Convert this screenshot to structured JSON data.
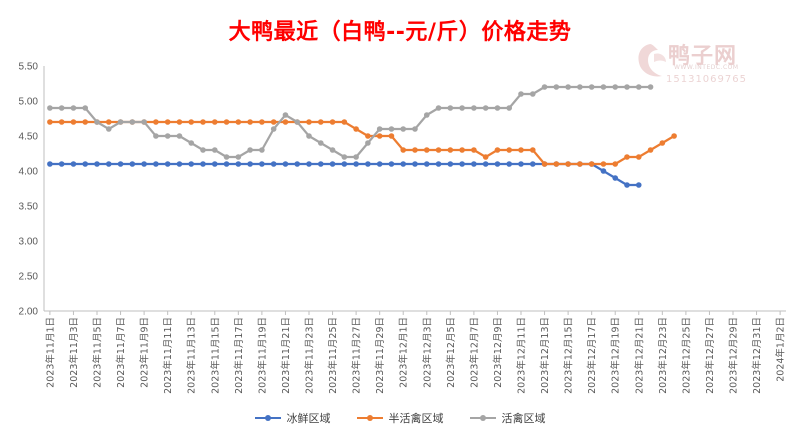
{
  "chart_data": {
    "type": "line",
    "title": "大鸭最近（白鸭--元/斤）价格走势",
    "ylim": [
      2.0,
      5.5
    ],
    "yticks": [
      "2.00",
      "2.50",
      "3.00",
      "3.50",
      "4.00",
      "4.50",
      "5.00",
      "5.50"
    ],
    "grid": false,
    "legend": "bottom",
    "x_labels": [
      "2023年11月1日",
      "2023年11月3日",
      "2023年11月5日",
      "2023年11月7日",
      "2023年11月9日",
      "2023年11月11日",
      "2023年11月13日",
      "2023年11月15日",
      "2023年11月17日",
      "2023年11月19日",
      "2023年11月21日",
      "2023年11月23日",
      "2023年11月25日",
      "2023年11月27日",
      "2023年11月29日",
      "2023年12月1日",
      "2023年12月3日",
      "2023年12月5日",
      "2023年12月7日",
      "2023年12月9日",
      "2023年12月11日",
      "2023年12月13日",
      "2023年12月15日",
      "2023年12月17日",
      "2023年12月19日",
      "2023年12月21日",
      "2023年12月23日",
      "2023年12月25日",
      "2023年12月27日",
      "2023年12月29日",
      "2023年12月31日",
      "2024年1月2日"
    ],
    "total_days": 63,
    "series": [
      {
        "name": "冰鲜区域",
        "color": "#4472c4",
        "values": [
          4.1,
          4.1,
          4.1,
          4.1,
          4.1,
          4.1,
          4.1,
          4.1,
          4.1,
          4.1,
          4.1,
          4.1,
          4.1,
          4.1,
          4.1,
          4.1,
          4.1,
          4.1,
          4.1,
          4.1,
          4.1,
          4.1,
          4.1,
          4.1,
          4.1,
          4.1,
          4.1,
          4.1,
          4.1,
          4.1,
          4.1,
          4.1,
          4.1,
          4.1,
          4.1,
          4.1,
          4.1,
          4.1,
          4.1,
          4.1,
          4.1,
          4.1,
          4.1,
          4.1,
          4.1,
          4.1,
          4.1,
          4.0,
          3.9,
          3.8,
          3.8
        ]
      },
      {
        "name": "半活禽区域",
        "color": "#ed7d31",
        "values": [
          4.7,
          4.7,
          4.7,
          4.7,
          4.7,
          4.7,
          4.7,
          4.7,
          4.7,
          4.7,
          4.7,
          4.7,
          4.7,
          4.7,
          4.7,
          4.7,
          4.7,
          4.7,
          4.7,
          4.7,
          4.7,
          4.7,
          4.7,
          4.7,
          4.7,
          4.7,
          4.6,
          4.5,
          4.5,
          4.5,
          4.3,
          4.3,
          4.3,
          4.3,
          4.3,
          4.3,
          4.3,
          4.2,
          4.3,
          4.3,
          4.3,
          4.3,
          4.1,
          4.1,
          4.1,
          4.1,
          4.1,
          4.1,
          4.1,
          4.2,
          4.2,
          4.3,
          4.4,
          4.5
        ]
      },
      {
        "name": "活禽区域",
        "color": "#a5a5a5",
        "values": [
          4.9,
          4.9,
          4.9,
          4.9,
          4.7,
          4.6,
          4.7,
          4.7,
          4.7,
          4.5,
          4.5,
          4.5,
          4.4,
          4.3,
          4.3,
          4.2,
          4.2,
          4.3,
          4.3,
          4.6,
          4.8,
          4.7,
          4.5,
          4.4,
          4.3,
          4.2,
          4.2,
          4.4,
          4.6,
          4.6,
          4.6,
          4.6,
          4.8,
          4.9,
          4.9,
          4.9,
          4.9,
          4.9,
          4.9,
          4.9,
          5.1,
          5.1,
          5.2,
          5.2,
          5.2,
          5.2,
          5.2,
          5.2,
          5.2,
          5.2,
          5.2,
          5.2
        ]
      }
    ]
  },
  "watermark": {
    "brand": "鸭子网",
    "url": "WWW.INTEDC.COM",
    "phone": "15131069765"
  }
}
